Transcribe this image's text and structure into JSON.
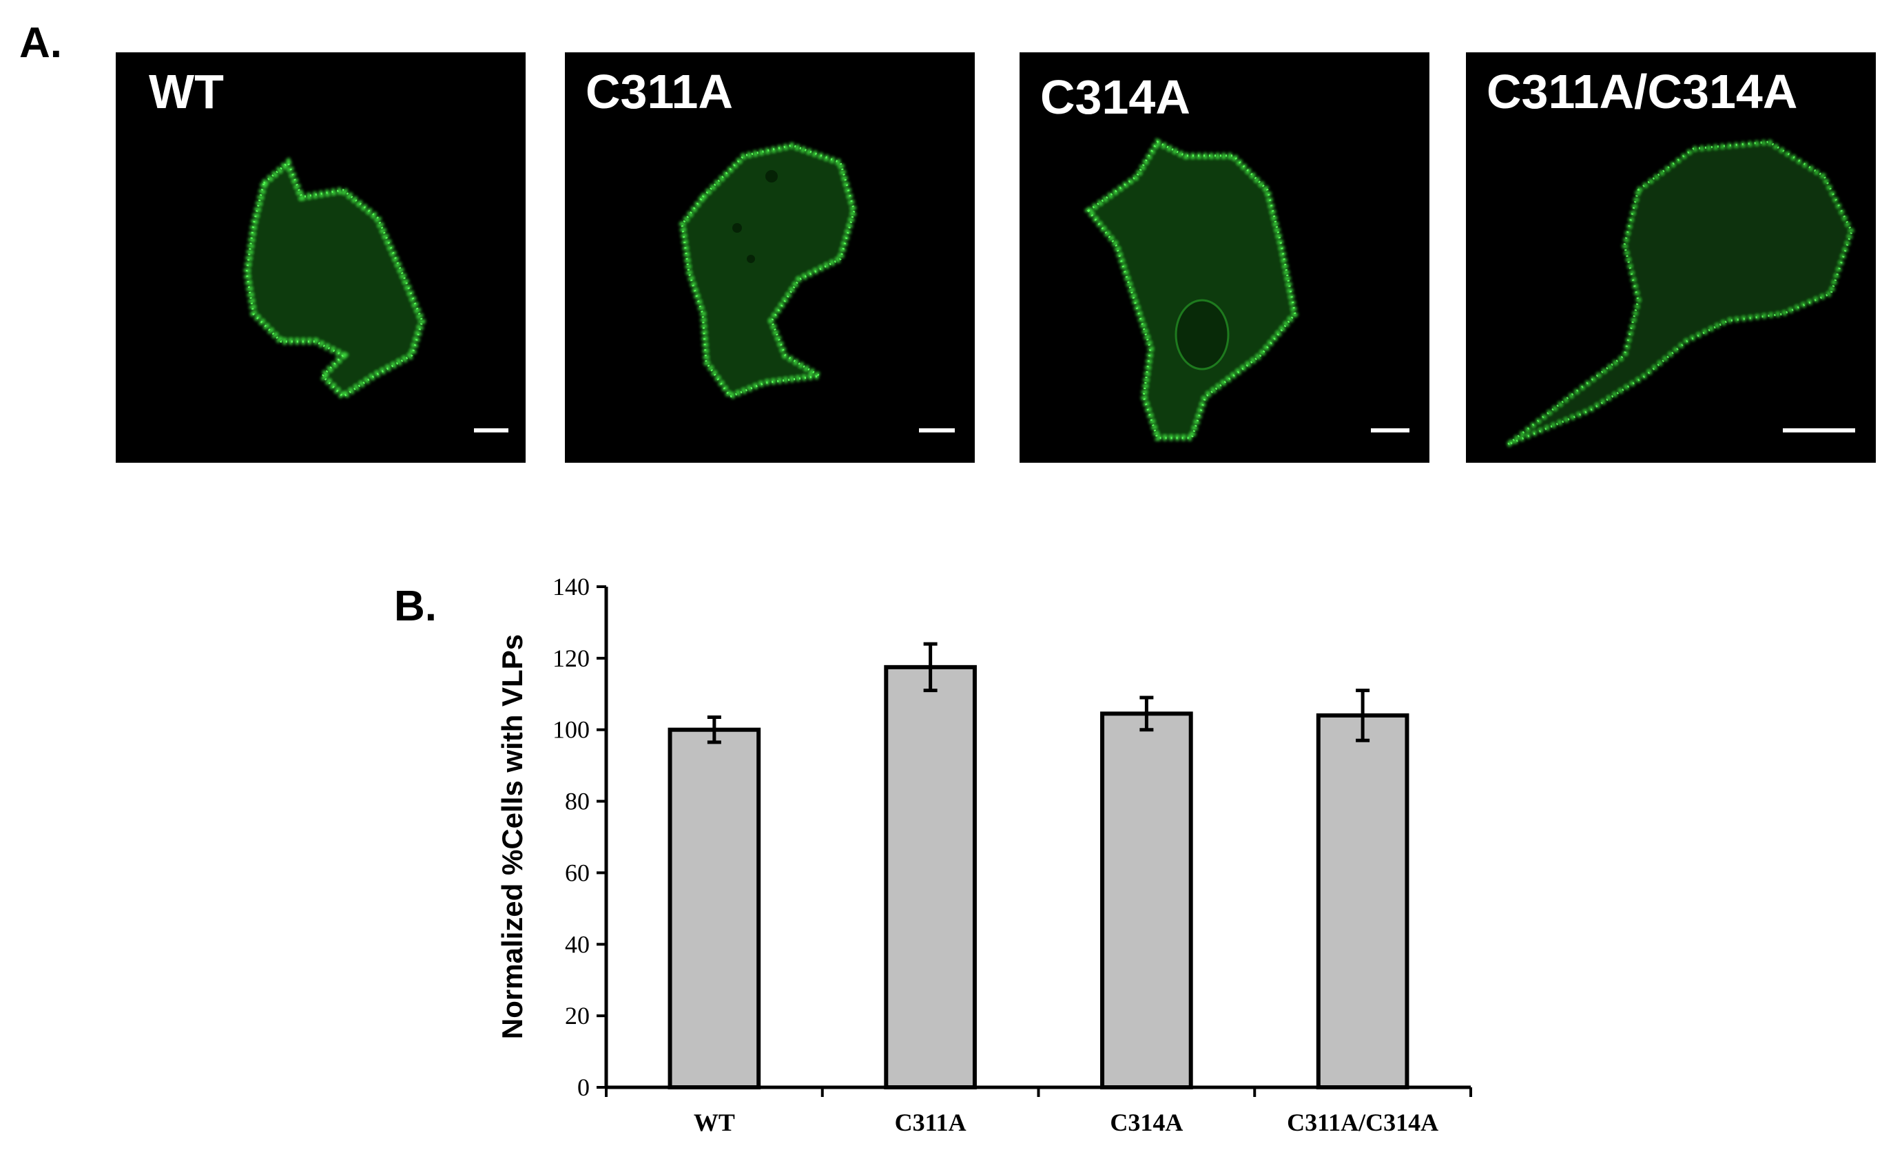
{
  "panel_a": {
    "letter": "A.",
    "images": [
      {
        "label": "WT"
      },
      {
        "label": "C311A"
      },
      {
        "label": "C314A"
      },
      {
        "label": "C311A/C314A"
      }
    ],
    "fluorescence_color": "#2ecc2e"
  },
  "panel_b": {
    "letter": "B."
  },
  "chart_data": {
    "type": "bar",
    "categories": [
      "WT",
      "C311A",
      "C314A",
      "C311A/C314A"
    ],
    "values": [
      100,
      117.5,
      104.5,
      104
    ],
    "errors": [
      3.5,
      6.5,
      4.5,
      7
    ],
    "title": "",
    "xlabel": "",
    "ylabel": "Normalized %Cells with VLPs",
    "ylim": [
      0,
      140
    ],
    "yticks": [
      "0",
      "20",
      "40",
      "60",
      "80",
      "100",
      "120",
      "140"
    ],
    "bar_color": "#c0c0c0",
    "grid": false,
    "legend": "none"
  }
}
